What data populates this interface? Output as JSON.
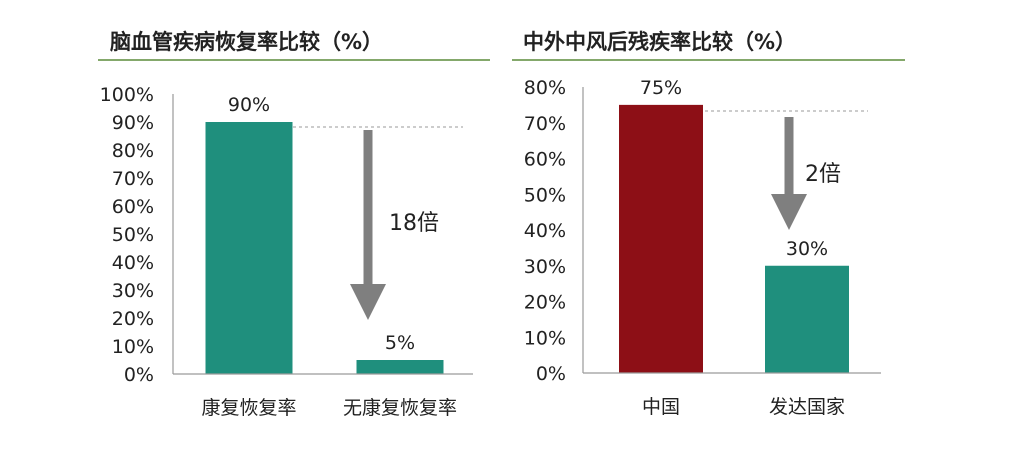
{
  "chart_data": [
    {
      "type": "bar",
      "title": "脑血管疾病恢复率比较（%）",
      "categories": [
        "康复恢复率",
        "无康复恢复率"
      ],
      "values": [
        90,
        5
      ],
      "data_labels": [
        "90%",
        "5%"
      ],
      "bar_colors": [
        "#1f8f7d",
        "#1f8f7d"
      ],
      "yticks": [
        "0%",
        "10%",
        "20%",
        "30%",
        "40%",
        "50%",
        "60%",
        "70%",
        "80%",
        "90%",
        "100%"
      ],
      "ylim": [
        0,
        100
      ],
      "annotation": "18倍",
      "grid": false,
      "legend": "none"
    },
    {
      "type": "bar",
      "title": "中外中风后残疾率比较（%）",
      "categories": [
        "中国",
        "发达国家"
      ],
      "values": [
        75,
        30
      ],
      "data_labels": [
        "75%",
        "30%"
      ],
      "bar_colors": [
        "#8d0f16",
        "#1f8f7d"
      ],
      "yticks": [
        "0%",
        "10%",
        "20%",
        "30%",
        "40%",
        "50%",
        "60%",
        "70%",
        "80%"
      ],
      "ylim": [
        0,
        80
      ],
      "annotation": "2倍",
      "grid": false,
      "legend": "none"
    }
  ],
  "colors": {
    "title_underline": "#5b8c3a",
    "axis": "#9a9a9a",
    "arrow": "#7f7f7f",
    "reference_line": "#9a9a9a"
  }
}
